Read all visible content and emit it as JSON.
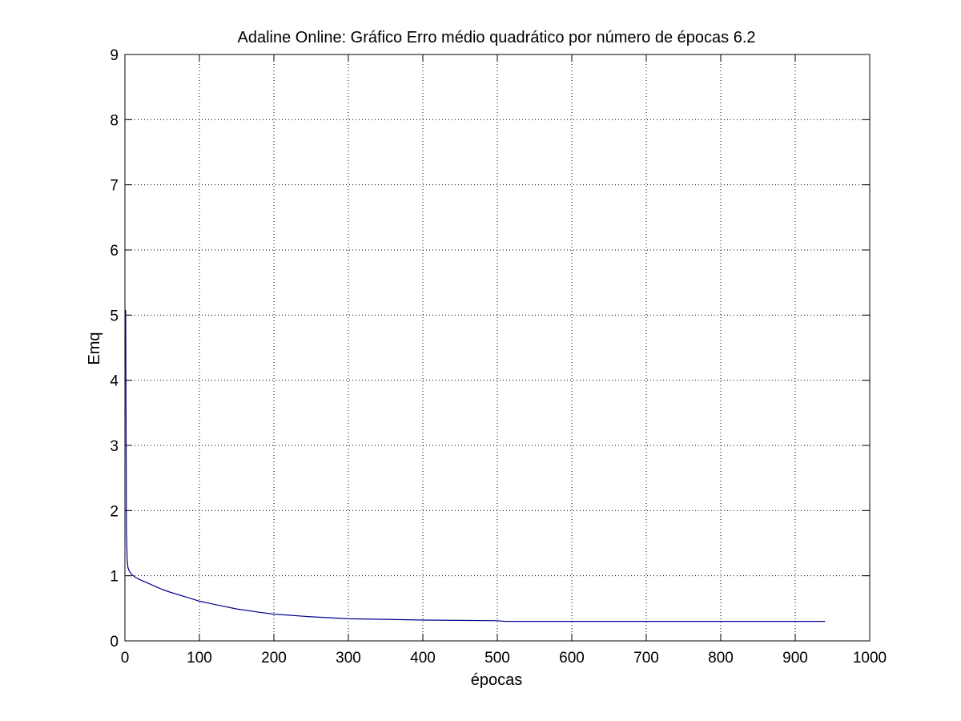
{
  "chart_data": {
    "type": "line",
    "title": "Adaline Online: Gráfico Erro médio quadrático por número de épocas 6.2",
    "xlabel": "épocas",
    "ylabel": "Emq",
    "xlim": [
      0,
      1000
    ],
    "ylim": [
      0,
      9
    ],
    "xticks": [
      0,
      100,
      200,
      300,
      400,
      500,
      600,
      700,
      800,
      900,
      1000
    ],
    "yticks": [
      0,
      1,
      2,
      3,
      4,
      5,
      6,
      7,
      8,
      9
    ],
    "xtick_labels": [
      "0",
      "100",
      "200",
      "300",
      "400",
      "500",
      "600",
      "700",
      "800",
      "900",
      "1000"
    ],
    "ytick_labels": [
      "0",
      "1",
      "2",
      "3",
      "4",
      "5",
      "6",
      "7",
      "8",
      "9"
    ],
    "grid": true,
    "legend": "none",
    "line_color": "#00008b",
    "series": [
      {
        "x": [
          1,
          2,
          3,
          4,
          5,
          7,
          10,
          15,
          20,
          30,
          40,
          50,
          60,
          80,
          100,
          120,
          150,
          180,
          200,
          250,
          300,
          350,
          400,
          450,
          500,
          510,
          550,
          600,
          650,
          700,
          750,
          800,
          850,
          900,
          940
        ],
        "y": [
          5.08,
          1.7,
          1.25,
          1.13,
          1.09,
          1.05,
          1.01,
          0.97,
          0.94,
          0.89,
          0.84,
          0.79,
          0.75,
          0.68,
          0.61,
          0.56,
          0.49,
          0.44,
          0.41,
          0.37,
          0.34,
          0.33,
          0.32,
          0.315,
          0.31,
          0.3,
          0.3,
          0.3,
          0.3,
          0.3,
          0.3,
          0.3,
          0.3,
          0.3,
          0.3
        ]
      }
    ]
  }
}
